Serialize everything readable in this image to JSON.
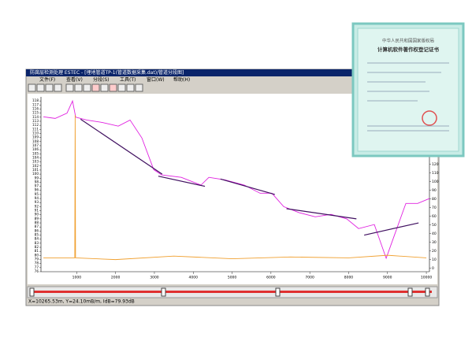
{
  "window": {
    "title": "防腐层检测处理 ESTEC - [埋地管道TP-1(管道数据采集.dat)/管道分段图]",
    "menu": [
      "文件(F)",
      "查看(V)",
      "分段(S)",
      "工具(T)",
      "窗口(W)",
      "帮助(H)"
    ],
    "status": "X=10265.53m, Y=24.10mB/m, IdB=79.93dB"
  },
  "certificate": {
    "issuer": "中华人民共和国国家版权局",
    "title": "计算机软件著作权登记证书"
  },
  "chart_data": {
    "type": "line",
    "xlim": [
      80,
      10080
    ],
    "xticks": [
      1000,
      2000,
      3000,
      4000,
      5000,
      6000,
      7000,
      8000,
      9000,
      10000
    ],
    "ylim": [
      76,
      119
    ],
    "yticks": [
      76,
      77,
      78,
      79,
      80,
      81,
      82,
      83,
      84,
      85,
      86,
      87,
      88,
      89,
      90,
      91,
      92,
      93,
      94,
      95,
      96,
      97,
      98,
      99,
      100,
      101,
      102,
      103,
      104,
      105,
      106,
      107,
      108,
      109,
      110,
      111,
      112,
      113,
      114,
      115,
      116,
      117,
      118
    ],
    "y2lim": [
      -4,
      198
    ],
    "y2ticks": [
      0,
      10,
      20,
      30,
      40,
      50,
      60,
      70,
      80,
      90,
      100,
      110,
      120
    ],
    "series": [
      {
        "color": "#e020e0",
        "x": [
          142,
          446,
          750,
          892,
          974,
          1258,
          1663,
          2069,
          2373,
          2677,
          2982,
          3185,
          3692,
          4199,
          4402,
          4807,
          5314,
          5720,
          6024,
          6329,
          6734,
          7140,
          7546,
          7951,
          8256,
          8661,
          8966,
          9168,
          9473,
          9777,
          10081
        ],
        "values": [
          114.1,
          113.7,
          115,
          118,
          114,
          113.3,
          112.7,
          111.8,
          113.3,
          108.9,
          101.1,
          99.8,
          99.2,
          97.3,
          99.2,
          98.6,
          97.3,
          95.3,
          95.3,
          92,
          90.5,
          89.5,
          90.1,
          89,
          86.6,
          87.6,
          79.3,
          84.7,
          92.8,
          92.8,
          94
        ]
      },
      {
        "color": "#f0a030",
        "axis": "y2",
        "x": [
          142,
          950,
          960,
          970,
          2000,
          3500,
          5000,
          6500,
          8000,
          9000,
          10000
        ],
        "values": [
          12,
          12,
          177,
          12,
          10,
          14,
          11,
          13,
          12,
          15,
          12
        ]
      },
      {
        "color": "#401060",
        "x": [
          1100,
          3200
        ],
        "values": [
          113.5,
          100
        ]
      },
      {
        "color": "#401060",
        "x": [
          3100,
          4300
        ],
        "values": [
          99.5,
          97
        ]
      },
      {
        "color": "#401060",
        "x": [
          4700,
          6100
        ],
        "values": [
          98.8,
          95
        ]
      },
      {
        "color": "#401060",
        "x": [
          6400,
          8200
        ],
        "values": [
          91.5,
          89
        ]
      },
      {
        "color": "#401060",
        "x": [
          8400,
          9800
        ],
        "values": [
          85,
          88
        ]
      }
    ]
  }
}
